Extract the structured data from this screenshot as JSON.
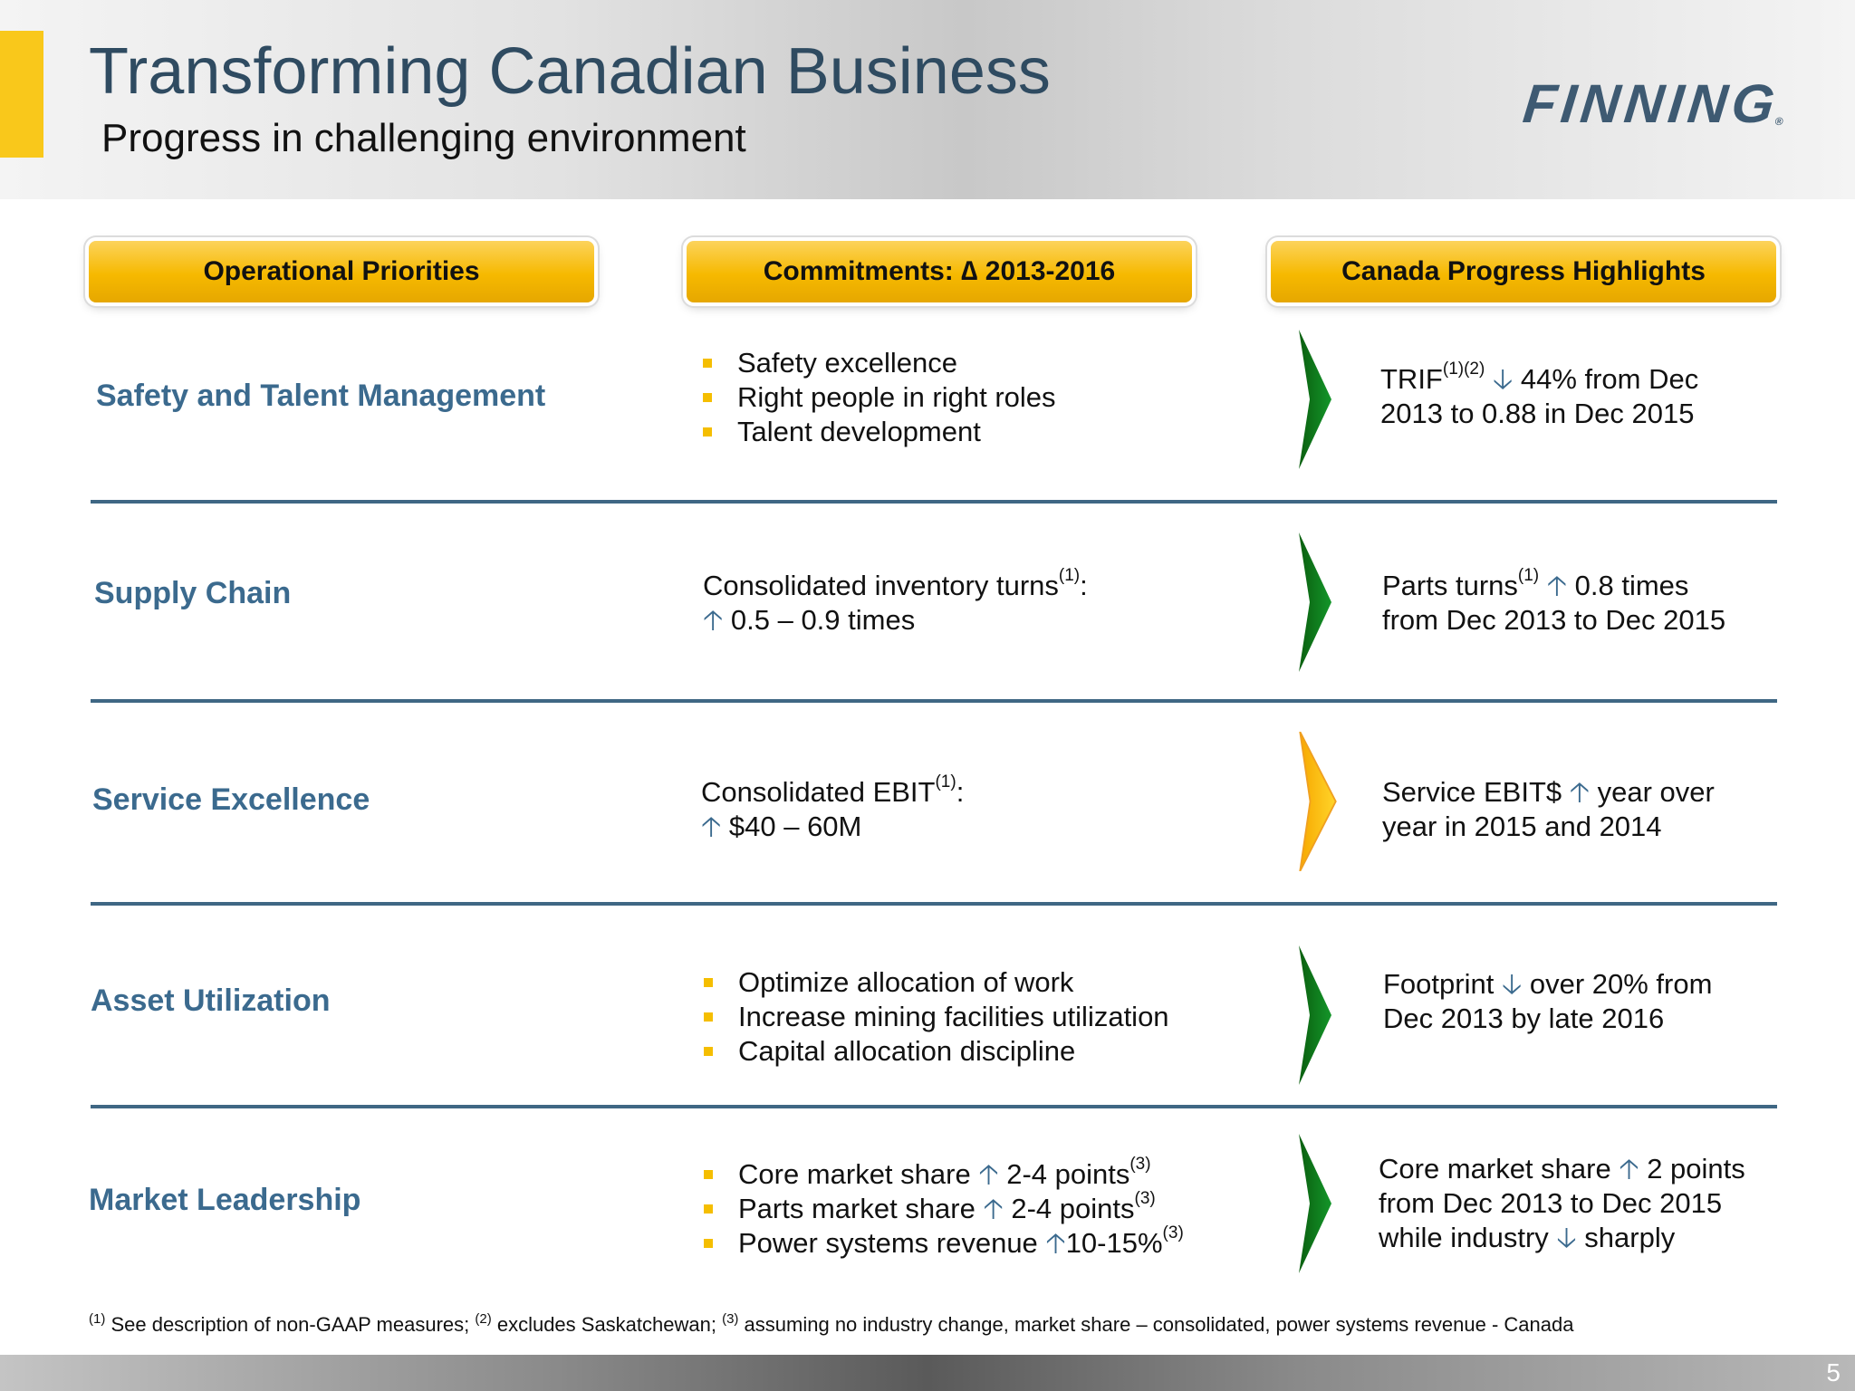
{
  "header": {
    "title": "Transforming Canadian Business",
    "subtitle": "Progress in challenging environment",
    "logo_text": "FINNING",
    "logo_mark": "®"
  },
  "columns": {
    "col1": "Operational Priorities",
    "col2": "Commitments: ∆ 2013-2016",
    "col3": "Canada Progress Highlights"
  },
  "icons": {
    "arrow_up": "🡡",
    "arrow_down": "🡣",
    "chevron_colors": {
      "green": "#0c7a12",
      "yellow": "#f9c81b"
    }
  },
  "rows": [
    {
      "label": "Safety and Talent Management",
      "commitments": [
        "Safety excellence",
        "Right people in right roles",
        "Talent development"
      ],
      "highlight": {
        "metric": "TRIF",
        "sup": "(1)(2)",
        "arrow": "down",
        "line1_rest": " 44% from Dec",
        "line2": "2013 to 0.88 in Dec 2015"
      },
      "status": "green"
    },
    {
      "label": "Supply Chain",
      "commitment": {
        "line1": "Consolidated inventory turns",
        "sup": "(1)",
        "suffix": ":",
        "line2": " 0.5 – 0.9 times"
      },
      "highlight": {
        "metric": "Parts turns",
        "sup": "(1)",
        "line1_rest": " 0.8 times",
        "line2": "from Dec 2013 to Dec 2015"
      },
      "status": "green"
    },
    {
      "label": "Service Excellence",
      "commitment": {
        "line1": "Consolidated EBIT",
        "sup": "(1)",
        "suffix": ":",
        "line2": " $40 – 60M"
      },
      "highlight": {
        "metric": "Service EBIT$",
        "line1_rest": " year over",
        "line2": "year in 2015 and 2014"
      },
      "status": "yellow"
    },
    {
      "label": "Asset Utilization",
      "commitments": [
        "Optimize allocation of work",
        "Increase mining facilities utilization",
        "Capital allocation discipline"
      ],
      "highlight": {
        "metric": "Footprint",
        "line1_rest": " over 20% from",
        "line2": "Dec 2013 by late 2016"
      },
      "status": "green"
    },
    {
      "label": "Market Leadership",
      "commitments": [
        {
          "text": "Core market share ",
          "value": " 2-4 points",
          "sup": "(3)"
        },
        {
          "text": "Parts market share ",
          "value": " 2-4 points",
          "sup": "(3)"
        },
        {
          "text": "Power systems revenue ",
          "value": "10-15%",
          "sup": "(3)"
        }
      ],
      "highlight": {
        "line1_text": "Core market share ",
        "line1_rest": " 2 points",
        "line2": "from Dec 2013 to Dec 2015",
        "line3_text": "while industry ",
        "line3_rest": " sharply"
      },
      "status": "green"
    }
  ],
  "footnote": {
    "n1": "(1)",
    "t1": " See description of non-GAAP measures; ",
    "n2": "(2)",
    "t2": " excludes Saskatchewan; ",
    "n3": "(3)",
    "t3": " assuming no industry change, market share – consolidated, power systems revenue - Canada"
  },
  "page_number": "5"
}
